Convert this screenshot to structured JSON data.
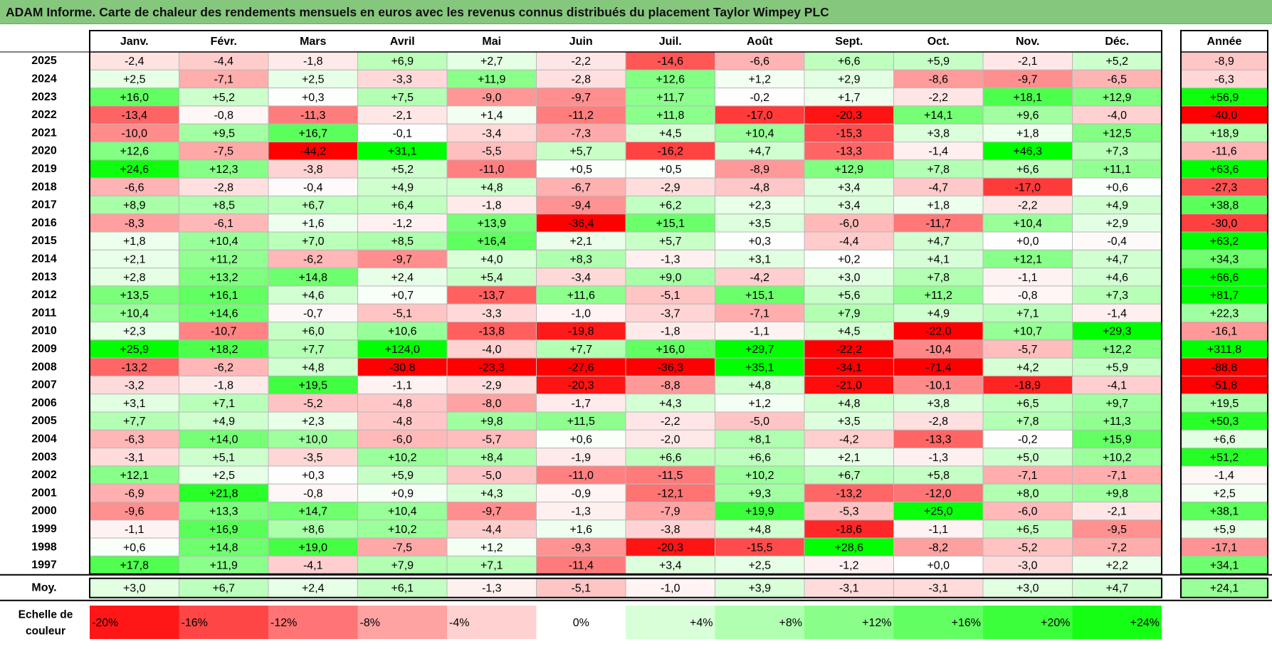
{
  "title": "ADAM Informe. Carte de chaleur des rendements mensuels en euros avec les revenus connus distribués du placement Taylor Wimpey PLC",
  "chart_data": {
    "type": "heatmap",
    "title": "ADAM Informe. Carte de chaleur des rendements mensuels en euros avec les revenus connus distribués du placement Taylor Wimpey PLC",
    "months": [
      "Janv.",
      "Févr.",
      "Mars",
      "Avril",
      "Mai",
      "Juin",
      "Juil.",
      "Août",
      "Sept.",
      "Oct.",
      "Nov.",
      "Déc."
    ],
    "year_header": "Année",
    "rows": [
      {
        "year": "2025",
        "values": [
          -2.4,
          -4.4,
          -1.8,
          6.9,
          2.7,
          -2.2,
          -14.6,
          -6.6,
          6.6,
          5.9,
          -2.1,
          5.2
        ],
        "annual": -8.9
      },
      {
        "year": "2024",
        "values": [
          2.5,
          -7.1,
          2.5,
          -3.3,
          11.9,
          -2.8,
          12.6,
          1.2,
          2.9,
          -8.6,
          -9.7,
          -6.5
        ],
        "annual": -6.3
      },
      {
        "year": "2023",
        "values": [
          16.0,
          5.2,
          0.3,
          7.5,
          -9.0,
          -9.7,
          11.7,
          -0.2,
          1.7,
          -2.2,
          18.1,
          12.9
        ],
        "annual": 56.9
      },
      {
        "year": "2022",
        "values": [
          -13.4,
          -0.8,
          -11.3,
          -2.1,
          1.4,
          -11.2,
          11.8,
          -17.0,
          -20.3,
          14.1,
          9.6,
          -4.0
        ],
        "annual": -40.0
      },
      {
        "year": "2021",
        "values": [
          -10.0,
          9.5,
          16.7,
          -0.1,
          -3.4,
          -7.3,
          4.5,
          10.4,
          -15.3,
          3.8,
          1.8,
          12.5
        ],
        "annual": 18.9
      },
      {
        "year": "2020",
        "values": [
          12.6,
          -7.5,
          -44.2,
          31.1,
          -5.5,
          5.7,
          -16.2,
          4.7,
          -13.3,
          -1.4,
          46.3,
          7.3
        ],
        "annual": -11.6
      },
      {
        "year": "2019",
        "values": [
          24.6,
          12.3,
          -3.8,
          5.2,
          -11.0,
          0.5,
          0.5,
          -8.9,
          12.9,
          7.8,
          6.6,
          11.1
        ],
        "annual": 63.6
      },
      {
        "year": "2018",
        "values": [
          -6.6,
          -2.8,
          -0.4,
          4.9,
          4.8,
          -6.7,
          -2.9,
          -4.8,
          3.4,
          -4.7,
          -17.0,
          0.6
        ],
        "annual": -27.3
      },
      {
        "year": "2017",
        "values": [
          8.9,
          8.5,
          6.7,
          6.4,
          -1.8,
          -9.4,
          6.2,
          2.3,
          3.4,
          1.8,
          -2.2,
          4.9
        ],
        "annual": 38.8
      },
      {
        "year": "2016",
        "values": [
          -8.3,
          -6.1,
          1.6,
          -1.2,
          13.9,
          -36.4,
          15.1,
          3.5,
          -6.0,
          -11.7,
          10.4,
          2.9
        ],
        "annual": -30.0
      },
      {
        "year": "2015",
        "values": [
          1.8,
          10.4,
          7.0,
          8.5,
          16.4,
          2.1,
          5.7,
          0.3,
          -4.4,
          4.7,
          0.0,
          -0.4
        ],
        "annual": 63.2
      },
      {
        "year": "2014",
        "values": [
          2.1,
          11.2,
          -6.2,
          -9.7,
          4.0,
          8.3,
          -1.3,
          3.1,
          0.2,
          4.1,
          12.1,
          4.7
        ],
        "annual": 34.3
      },
      {
        "year": "2013",
        "values": [
          2.8,
          13.2,
          14.8,
          2.4,
          5.4,
          -3.4,
          9.0,
          -4.2,
          3.0,
          7.8,
          -1.1,
          4.6
        ],
        "annual": 66.6
      },
      {
        "year": "2012",
        "values": [
          13.5,
          16.1,
          4.6,
          0.7,
          -13.7,
          11.6,
          -5.1,
          15.1,
          5.6,
          11.2,
          -0.8,
          7.3
        ],
        "annual": 81.7
      },
      {
        "year": "2011",
        "values": [
          10.4,
          14.6,
          -0.7,
          -5.1,
          -3.3,
          -1.0,
          -3.7,
          -7.1,
          7.9,
          4.9,
          7.1,
          -1.4
        ],
        "annual": 22.3
      },
      {
        "year": "2010",
        "values": [
          2.3,
          -10.7,
          6.0,
          10.6,
          -13.8,
          -19.8,
          -1.8,
          -1.1,
          4.5,
          -22.0,
          10.7,
          29.3
        ],
        "annual": -16.1
      },
      {
        "year": "2009",
        "values": [
          25.9,
          18.2,
          7.7,
          124.0,
          -4.0,
          7.7,
          16.0,
          29.7,
          -22.2,
          -10.4,
          -5.7,
          12.2
        ],
        "annual": 311.8
      },
      {
        "year": "2008",
        "values": [
          -13.2,
          -6.2,
          4.8,
          -30.8,
          -23.3,
          -27.6,
          -36.3,
          35.1,
          -34.1,
          -71.4,
          4.2,
          5.9
        ],
        "annual": -88.8
      },
      {
        "year": "2007",
        "values": [
          -3.2,
          -1.8,
          19.5,
          -1.1,
          -2.9,
          -20.3,
          -8.8,
          4.8,
          -21.0,
          -10.1,
          -18.9,
          -4.1
        ],
        "annual": -51.8
      },
      {
        "year": "2006",
        "values": [
          3.1,
          7.1,
          -5.2,
          -4.8,
          -8.0,
          -1.7,
          4.3,
          1.2,
          4.8,
          3.8,
          6.5,
          9.7
        ],
        "annual": 19.5
      },
      {
        "year": "2005",
        "values": [
          7.7,
          4.9,
          2.3,
          -4.8,
          9.8,
          11.5,
          -2.2,
          -5.0,
          3.5,
          -2.8,
          7.8,
          11.3
        ],
        "annual": 50.3
      },
      {
        "year": "2004",
        "values": [
          -6.3,
          14.0,
          10.0,
          -6.0,
          -5.7,
          0.6,
          -2.0,
          8.1,
          -4.2,
          -13.3,
          -0.2,
          15.9
        ],
        "annual": 6.6
      },
      {
        "year": "2003",
        "values": [
          -3.1,
          5.1,
          -3.5,
          10.2,
          8.4,
          -1.9,
          6.6,
          6.6,
          2.1,
          -1.3,
          5.0,
          10.2
        ],
        "annual": 51.2
      },
      {
        "year": "2002",
        "values": [
          12.1,
          2.5,
          0.3,
          5.9,
          -5.0,
          -11.0,
          -11.5,
          10.2,
          6.7,
          5.8,
          -7.1,
          -7.1
        ],
        "annual": -1.4
      },
      {
        "year": "2001",
        "values": [
          -6.9,
          21.8,
          -0.8,
          0.9,
          4.3,
          -0.9,
          -12.1,
          9.3,
          -13.2,
          -12.0,
          8.0,
          9.8
        ],
        "annual": 2.5
      },
      {
        "year": "2000",
        "values": [
          -9.6,
          13.3,
          14.7,
          10.4,
          -9.7,
          -1.3,
          -7.9,
          19.9,
          -5.3,
          25.0,
          -6.0,
          -2.1
        ],
        "annual": 38.1
      },
      {
        "year": "1999",
        "values": [
          -1.1,
          16.9,
          8.6,
          10.2,
          -4.4,
          1.6,
          -3.8,
          4.8,
          -18.6,
          -1.1,
          6.5,
          -9.5
        ],
        "annual": 5.9
      },
      {
        "year": "1998",
        "values": [
          0.6,
          14.8,
          19.0,
          -7.5,
          1.2,
          -9.3,
          -20.3,
          -15.5,
          28.6,
          -8.2,
          -5.2,
          -7.2
        ],
        "annual": -17.1
      },
      {
        "year": "1997",
        "values": [
          17.8,
          11.9,
          -4.1,
          7.9,
          7.1,
          -11.4,
          3.4,
          2.5,
          -1.2,
          0.0,
          -3.0,
          2.2
        ],
        "annual": 34.1
      }
    ],
    "average": {
      "label": "Moy.",
      "values": [
        3.0,
        6.7,
        2.4,
        6.1,
        -1.3,
        -5.1,
        -1.0,
        3.9,
        -3.1,
        -3.1,
        3.0,
        4.7
      ],
      "annual": 24.1
    },
    "legend": {
      "label_line1": "Echelle de",
      "label_line2": "couleur",
      "steps": [
        "-20%",
        "-16%",
        "-12%",
        "-8%",
        "-4%",
        "0%",
        "+4%",
        "+8%",
        "+12%",
        "+16%",
        "+20%",
        "+24%"
      ]
    },
    "colors": {
      "negative_max": "#ff0000",
      "neutral": "#ffffff",
      "positive_max": "#00ff00",
      "title_bar": "#86c77e"
    }
  }
}
